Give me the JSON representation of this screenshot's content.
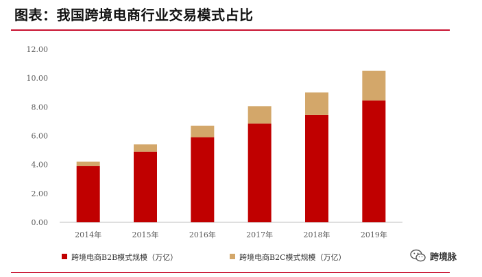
{
  "title": "图表：我国跨境电商行业交易模式占比",
  "watermark": "跨境脉",
  "colors": {
    "b2b": "#c00000",
    "b2c": "#d3a76a",
    "accent": "#c8102e"
  },
  "chart_data": {
    "type": "bar",
    "stacked": true,
    "categories": [
      "2014年",
      "2015年",
      "2016年",
      "2017年",
      "2018年",
      "2019年"
    ],
    "series": [
      {
        "name": "跨境电商B2B模式规模（万亿）",
        "values": [
          3.9,
          4.9,
          5.9,
          6.85,
          7.45,
          8.45
        ],
        "color": "#c00000"
      },
      {
        "name": "跨境电商B2C模式规模（万亿）",
        "values": [
          0.3,
          0.5,
          0.8,
          1.2,
          1.55,
          2.05
        ],
        "color": "#d3a76a"
      }
    ],
    "ylim": [
      0,
      12
    ],
    "yticks": [
      "0.00",
      "2.00",
      "4.00",
      "6.00",
      "8.00",
      "10.00",
      "12.00"
    ],
    "grid": false,
    "legend": "bottom"
  }
}
